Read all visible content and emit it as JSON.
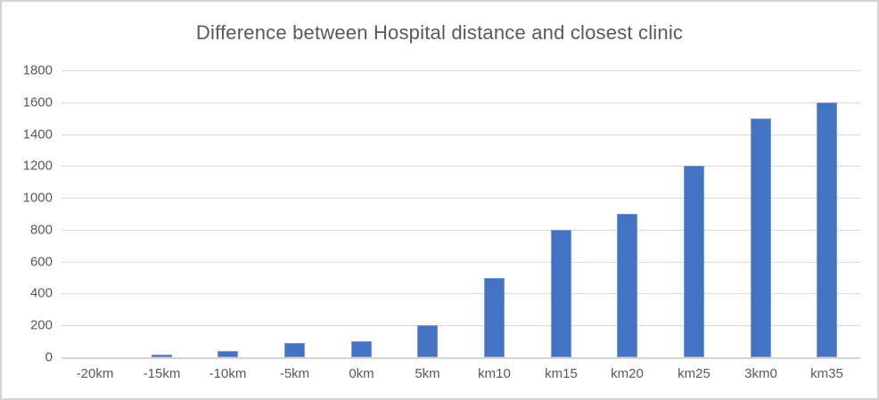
{
  "window": {
    "background_color": "#ffffff",
    "frame_border_color": "#d3d3d3"
  },
  "chart_data": {
    "type": "bar",
    "title": "Difference between Hospital distance and closest clinic",
    "categories": [
      "-20km",
      "-15km",
      "-10km",
      "-5km",
      "0km",
      "5km",
      "km10",
      "km15",
      "km20",
      "km25",
      "3km0",
      "km35"
    ],
    "values": [
      0,
      15,
      40,
      90,
      100,
      200,
      500,
      800,
      900,
      1200,
      1500,
      1600
    ],
    "xlabel": "",
    "ylabel": "",
    "ylim": [
      0,
      1800
    ],
    "yticks": [
      0,
      200,
      400,
      600,
      800,
      1000,
      1200,
      1400,
      1600,
      1800
    ],
    "grid": true,
    "legend_position": "none",
    "bar_color": "#4472c4",
    "bar_border_color": "#7c99d4",
    "gridline_color": "#d9d9d9",
    "axis_line_color": "#d5d5d5",
    "tick_label_color": "#595959",
    "title_color": "#595959"
  }
}
